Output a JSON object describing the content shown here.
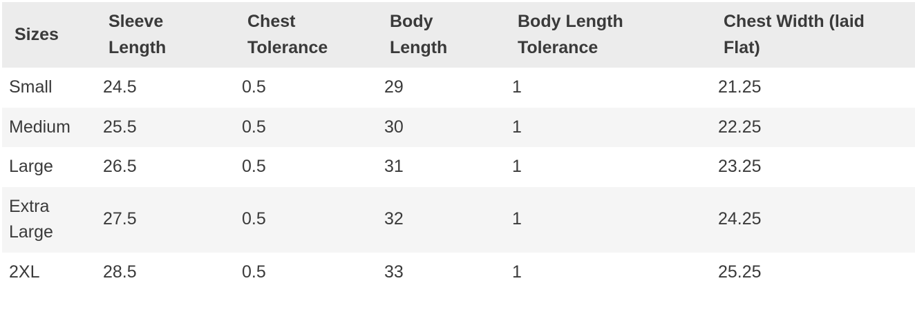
{
  "colors": {
    "header_bg": "#ececec",
    "stripe_bg": "#f5f5f5",
    "page_bg": "#ffffff",
    "text": "#3a3a3a"
  },
  "chart_data": {
    "type": "table",
    "title": "",
    "columns": [
      "Sizes",
      "Sleeve Length",
      "Chest Tolerance",
      "Body Length",
      "Body Length Tolerance",
      "Chest Width (laid Flat)"
    ],
    "rows": [
      {
        "cells": [
          "Small",
          "24.5",
          "0.5",
          "29",
          "1",
          "21.25"
        ]
      },
      {
        "cells": [
          "Medium",
          "25.5",
          "0.5",
          "30",
          "1",
          "22.25"
        ]
      },
      {
        "cells": [
          "Large",
          "26.5",
          "0.5",
          "31",
          "1",
          "23.25"
        ]
      },
      {
        "cells": [
          "Extra Large",
          "27.5",
          "0.5",
          "32",
          "1",
          "24.25"
        ]
      },
      {
        "cells": [
          "2XL",
          "28.5",
          "0.5",
          "33",
          "1",
          "25.25"
        ]
      }
    ],
    "layout": {
      "grid": false,
      "borders": "none",
      "striped": true,
      "header_position": "top"
    }
  }
}
